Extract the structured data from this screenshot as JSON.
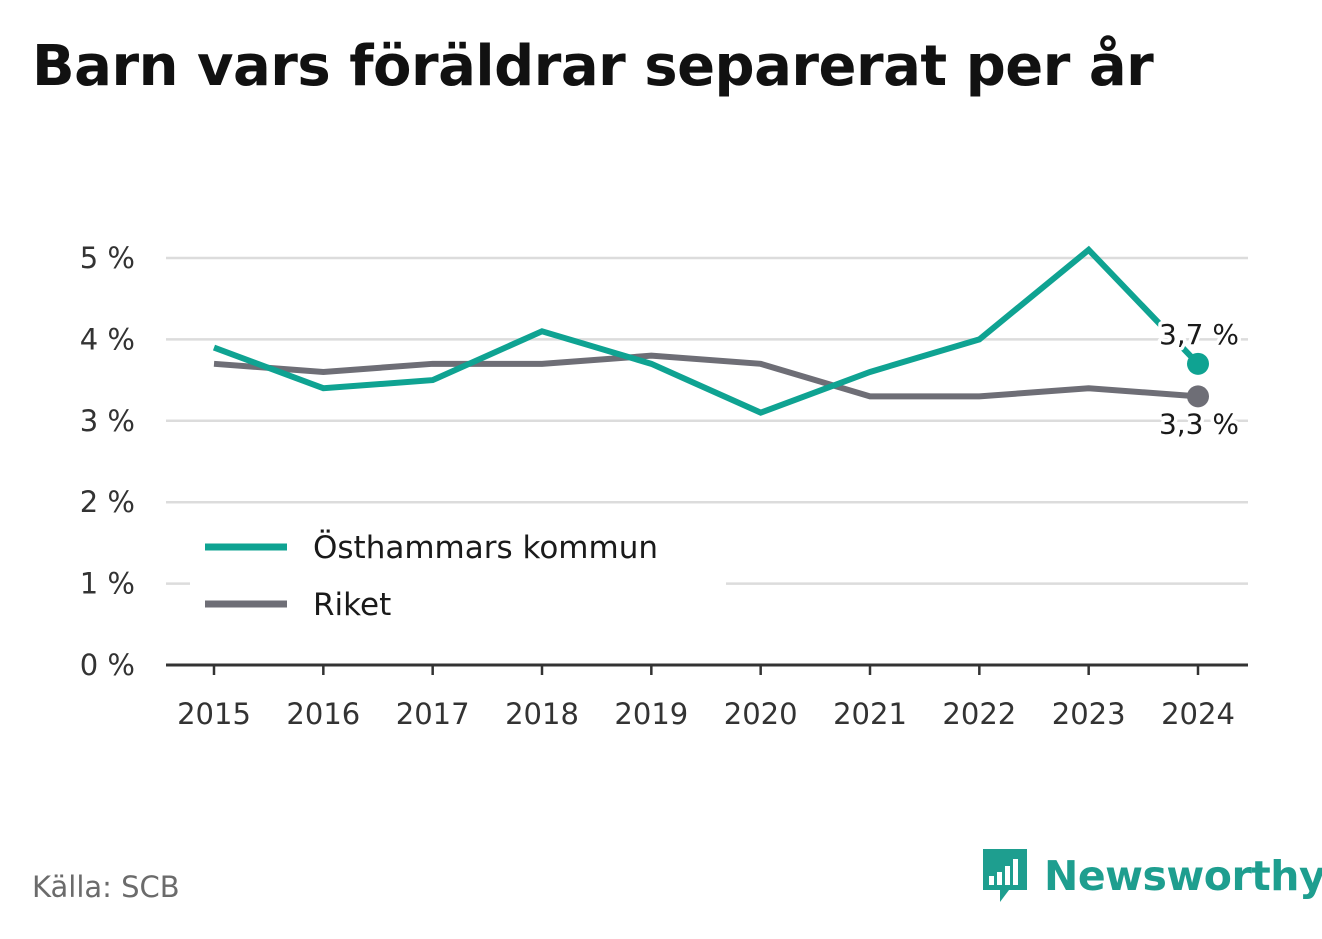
{
  "title": "Barn vars föräldrar separerat per år",
  "source": "Källa: SCB",
  "brand": {
    "name": "Newsworthy",
    "icon": "bar-chart-speech-bubble-icon",
    "color": "#1e9e8f"
  },
  "chart_data": {
    "type": "line",
    "x": [
      "2015",
      "2016",
      "2017",
      "2018",
      "2019",
      "2020",
      "2021",
      "2022",
      "2023",
      "2024"
    ],
    "y_ticks": [
      "0 %",
      "1 %",
      "2 %",
      "3 %",
      "4 %",
      "5 %"
    ],
    "ylim": [
      0,
      5
    ],
    "grid": true,
    "legend_position": "bottom-left",
    "series": [
      {
        "name": "Östhammars kommun",
        "color": "#0fa392",
        "values": [
          3.9,
          3.4,
          3.5,
          4.1,
          3.7,
          3.1,
          3.6,
          4.0,
          5.1,
          3.7
        ],
        "end_label": "3,7 %"
      },
      {
        "name": "Riket",
        "color": "#6e6e76",
        "values": [
          3.7,
          3.6,
          3.7,
          3.7,
          3.8,
          3.7,
          3.3,
          3.3,
          3.4,
          3.3
        ],
        "end_label": "3,3 %"
      }
    ]
  }
}
